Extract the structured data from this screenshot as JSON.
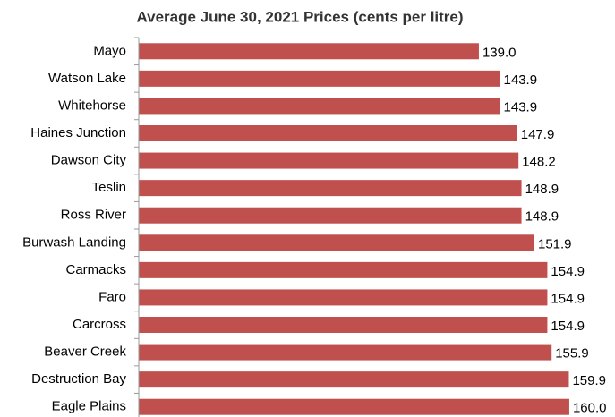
{
  "chart_data": {
    "type": "barh",
    "title": "Average June 30, 2021 Prices (cents per litre)",
    "categories": [
      "Mayo",
      "Watson Lake",
      "Whitehorse",
      "Haines Junction",
      "Dawson City",
      "Teslin",
      "Ross River",
      "Burwash Landing",
      "Carmacks",
      "Faro",
      "Carcross",
      "Beaver Creek",
      "Destruction Bay",
      "Eagle Plains"
    ],
    "values": [
      139.0,
      143.9,
      143.9,
      147.9,
      148.2,
      148.9,
      148.9,
      151.9,
      154.9,
      154.9,
      154.9,
      155.9,
      159.9,
      160.0
    ],
    "value_labels": [
      "139.0",
      "143.9",
      "143.9",
      "147.9",
      "148.2",
      "148.9",
      "148.9",
      "151.9",
      "154.9",
      "154.9",
      "154.9",
      "155.9",
      "159.9",
      "160.0"
    ],
    "color": "#c0504d",
    "xlim": [
      60,
      165
    ]
  }
}
